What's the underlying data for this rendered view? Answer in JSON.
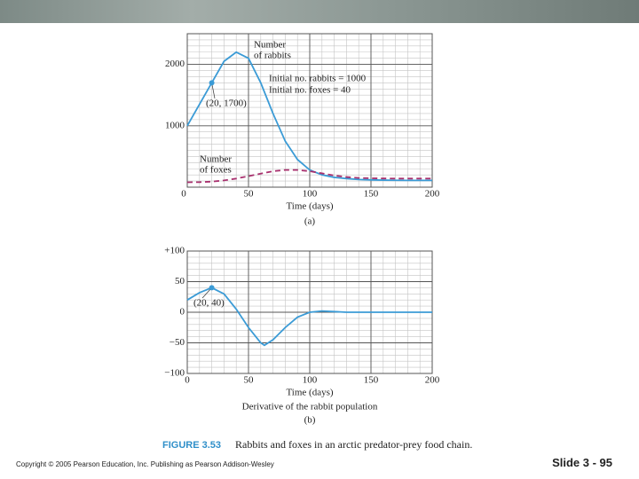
{
  "chart_data": [
    {
      "type": "line",
      "x_label": "Time (days)",
      "panel_label": "(a)",
      "x": [
        0,
        10,
        20,
        30,
        40,
        50,
        60,
        70,
        80,
        90,
        100,
        110,
        120,
        130,
        140,
        150,
        160,
        170,
        180,
        190,
        200
      ],
      "series": [
        {
          "color": "#3b9bd6",
          "dashed": false,
          "values": [
            1000,
            1350,
            1700,
            2050,
            2200,
            2100,
            1700,
            1200,
            750,
            450,
            280,
            200,
            160,
            140,
            125,
            118,
            115,
            112,
            110,
            110,
            110
          ]
        },
        {
          "color": "#a8306e",
          "dashed": true,
          "values": [
            80,
            82,
            90,
            110,
            140,
            180,
            220,
            260,
            280,
            280,
            260,
            225,
            190,
            165,
            150,
            145,
            142,
            140,
            140,
            140,
            140
          ]
        }
      ],
      "points": [
        {
          "x": 20,
          "y": 1700,
          "label": "(20, 1700)"
        }
      ],
      "annotations": [
        [
          "Number",
          "of rabbits"
        ],
        [
          "Initial no. rabbits = 1000",
          "Initial no. foxes = 40"
        ],
        [
          "Number",
          "of foxes"
        ]
      ],
      "xlim": [
        0,
        200
      ],
      "ylim": [
        0,
        2500
      ],
      "xticks": [
        0,
        50,
        100,
        150,
        200
      ],
      "yticks": [
        1000,
        2000
      ],
      "grid": true,
      "minor_grid": {
        "x": 10,
        "y": 100
      }
    },
    {
      "type": "line",
      "x_label": "Time (days)",
      "subtitle": "Derivative of the rabbit population",
      "panel_label": "(b)",
      "x": [
        0,
        10,
        20,
        30,
        40,
        50,
        60,
        63,
        70,
        80,
        90,
        100,
        110,
        120,
        130,
        140,
        150,
        160,
        170,
        180,
        190,
        200
      ],
      "series": [
        {
          "color": "#3b9bd6",
          "dashed": false,
          "values": [
            20,
            32,
            40,
            30,
            5,
            -25,
            -50,
            -54,
            -45,
            -25,
            -8,
            0,
            2,
            1,
            0,
            0,
            0,
            0,
            0,
            0,
            0,
            0
          ]
        }
      ],
      "points": [
        {
          "x": 20,
          "y": 40,
          "label": "(20, 40)"
        }
      ],
      "annotations": [],
      "xlim": [
        0,
        200
      ],
      "ylim": [
        -100,
        100
      ],
      "xticks": [
        0,
        50,
        100,
        150,
        200
      ],
      "yticks": [
        {
          "value": -100,
          "label": "−100"
        },
        {
          "value": -50,
          "label": "−50"
        },
        0,
        50,
        {
          "value": 100,
          "label": "+100"
        }
      ],
      "grid": true,
      "minor_grid": {
        "x": 10,
        "y": 10
      }
    }
  ],
  "figure": {
    "label": "FIGURE 3.53",
    "caption": "Rabbits and foxes in an arctic predator-prey food chain."
  },
  "footer": {
    "copyright": "Copyright © 2005 Pearson Education, Inc. Publishing as Pearson Addison-Wesley",
    "slide": "Slide 3 - 95"
  }
}
